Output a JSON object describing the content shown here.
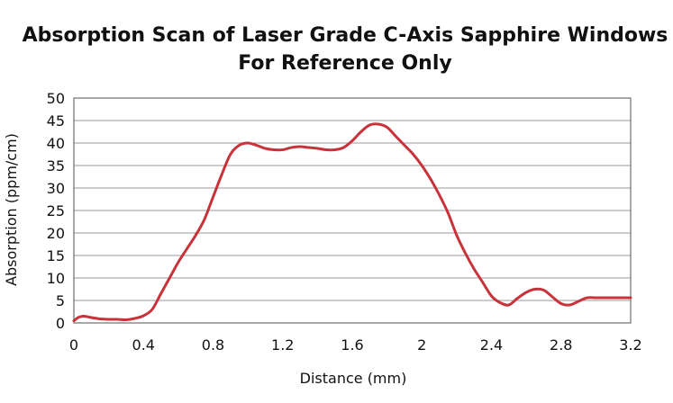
{
  "chart_data": {
    "type": "line",
    "title": "Absorption Scan of Laser Grade C-Axis Sapphire Windows",
    "subtitle": "For Reference Only",
    "xlabel": "Distance (mm)",
    "ylabel": "Absorption (ppm/cm)",
    "xlim": [
      0,
      3.2
    ],
    "ylim": [
      0,
      50
    ],
    "xticks": [
      0,
      0.4,
      0.8,
      1.2,
      1.6,
      2,
      2.4,
      2.8,
      3.2
    ],
    "xtick_labels": [
      "0",
      "0.4",
      "0.8",
      "1.2",
      "1.6",
      "2",
      "2.4",
      "2.8",
      "3.2"
    ],
    "yticks": [
      0,
      5,
      10,
      15,
      20,
      25,
      30,
      35,
      40,
      45,
      50
    ],
    "ytick_labels": [
      "0",
      "5",
      "10",
      "15",
      "20",
      "25",
      "30",
      "35",
      "40",
      "45",
      "50"
    ],
    "grid": true,
    "line_color": "#c8333b",
    "series": [
      {
        "x": [
          0,
          0.03,
          0.06,
          0.1,
          0.15,
          0.2,
          0.25,
          0.3,
          0.35,
          0.4,
          0.45,
          0.5,
          0.55,
          0.6,
          0.65,
          0.7,
          0.75,
          0.8,
          0.85,
          0.9,
          0.95,
          1.0,
          1.05,
          1.1,
          1.15,
          1.2,
          1.25,
          1.3,
          1.35,
          1.4,
          1.45,
          1.5,
          1.55,
          1.6,
          1.65,
          1.7,
          1.75,
          1.8,
          1.85,
          1.9,
          1.95,
          2.0,
          2.05,
          2.1,
          2.15,
          2.2,
          2.25,
          2.3,
          2.35,
          2.4,
          2.45,
          2.5,
          2.55,
          2.6,
          2.65,
          2.7,
          2.75,
          2.8,
          2.85,
          2.9,
          2.95,
          3.0,
          3.05,
          3.1,
          3.15,
          3.2
        ],
        "y": [
          0.5,
          1.3,
          1.5,
          1.2,
          0.9,
          0.8,
          0.8,
          0.7,
          1.0,
          1.6,
          3.0,
          6.5,
          10.0,
          13.5,
          16.5,
          19.5,
          23.0,
          28.0,
          33.0,
          37.5,
          39.5,
          40.0,
          39.5,
          38.8,
          38.5,
          38.5,
          39.0,
          39.2,
          39.0,
          38.8,
          38.5,
          38.5,
          39.0,
          40.5,
          42.5,
          44.0,
          44.2,
          43.5,
          41.5,
          39.5,
          37.5,
          35.0,
          32.0,
          28.5,
          24.5,
          19.5,
          15.5,
          12.0,
          9.0,
          6.0,
          4.5,
          4.0,
          5.5,
          6.8,
          7.5,
          7.3,
          5.8,
          4.3,
          4.0,
          4.8,
          5.6,
          5.6,
          5.6,
          5.6,
          5.6,
          5.6
        ]
      }
    ]
  }
}
